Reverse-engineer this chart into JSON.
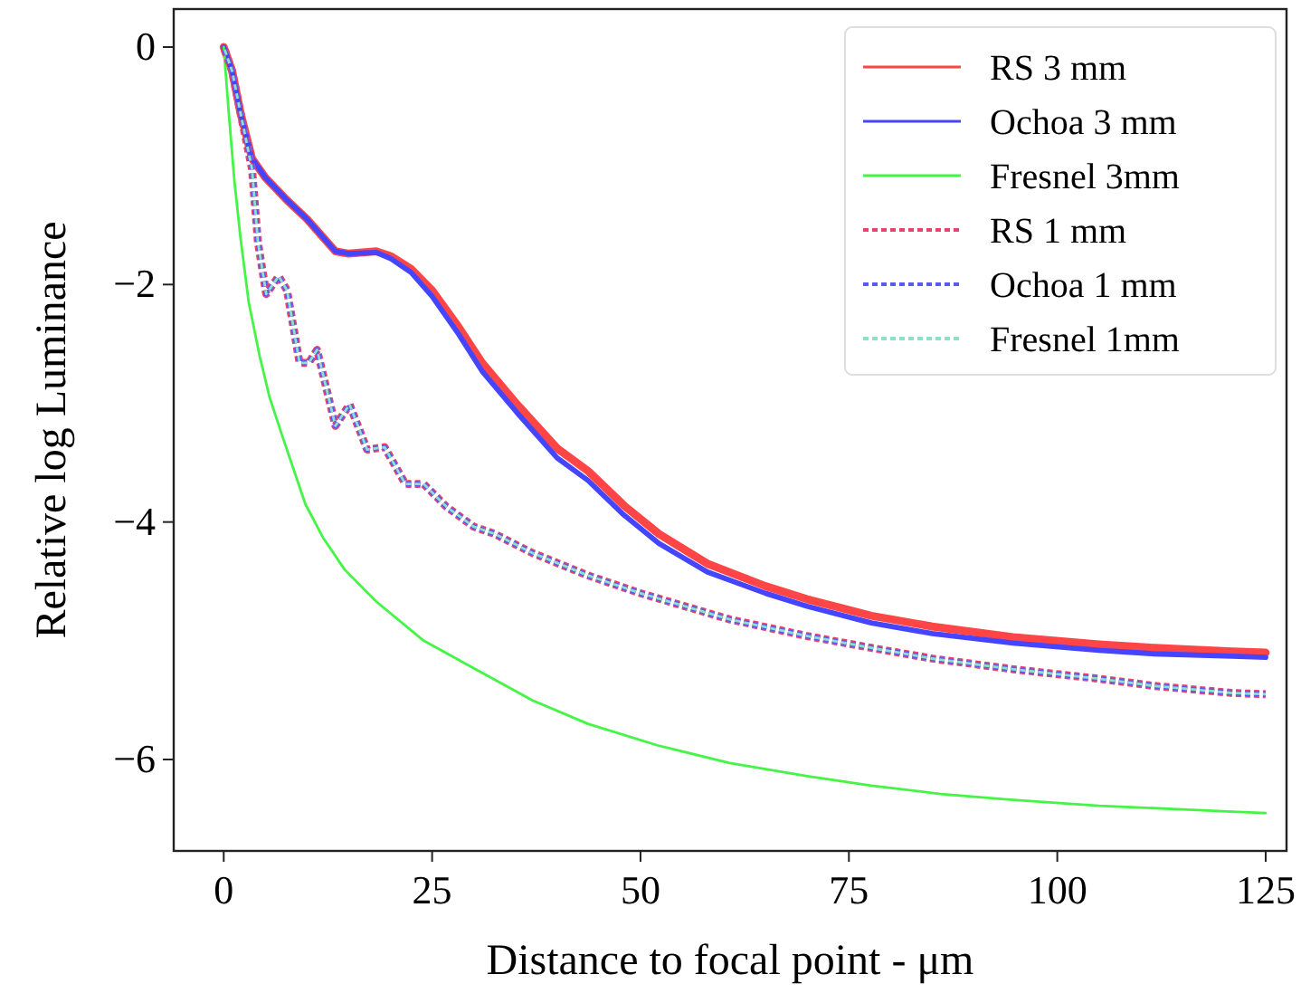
{
  "chart_data": {
    "type": "line",
    "xlabel": "Distance to focal point - μm",
    "ylabel": "Relative log Luminance",
    "xlim": [
      -6,
      127.5
    ],
    "ylim": [
      -6.77,
      0.32
    ],
    "xticks": [
      0,
      25,
      50,
      75,
      100,
      125
    ],
    "yticks": [
      0,
      -2,
      -4,
      -6
    ],
    "grid": false,
    "legend": "top right",
    "series": [
      {
        "name": "RS 3 mm",
        "color": "#ff4545",
        "line_style": "solid",
        "x": [
          0,
          1,
          2,
          3.4,
          5,
          7.6,
          10,
          13.4,
          15,
          18.3,
          20,
          22.5,
          25,
          28.2,
          31,
          35.2,
          40,
          43.7,
          48,
          52.2,
          58,
          65,
          70,
          77.7,
          85,
          94.7,
          105,
          111.6,
          121,
          125
        ],
        "values": [
          0,
          -0.2,
          -0.55,
          -0.94,
          -1.1,
          -1.29,
          -1.45,
          -1.72,
          -1.74,
          -1.72,
          -1.76,
          -1.87,
          -2.05,
          -2.36,
          -2.66,
          -3.01,
          -3.38,
          -3.57,
          -3.86,
          -4.1,
          -4.35,
          -4.54,
          -4.65,
          -4.79,
          -4.88,
          -4.97,
          -5.03,
          -5.06,
          -5.09,
          -5.1
        ]
      },
      {
        "name": "Ochoa 3 mm",
        "color": "#4545ff",
        "line_style": "solid",
        "x": [
          0,
          1,
          2,
          3.4,
          5,
          7.6,
          10,
          13.4,
          15,
          18.3,
          20,
          22.5,
          25,
          28.2,
          31,
          35.2,
          40,
          43.7,
          48,
          52.2,
          58,
          65,
          70,
          77.7,
          85,
          94.7,
          105,
          111.6,
          121,
          125
        ],
        "values": [
          0,
          -0.2,
          -0.55,
          -0.94,
          -1.1,
          -1.29,
          -1.45,
          -1.72,
          -1.74,
          -1.73,
          -1.78,
          -1.9,
          -2.1,
          -2.42,
          -2.73,
          -3.08,
          -3.46,
          -3.65,
          -3.94,
          -4.18,
          -4.42,
          -4.6,
          -4.71,
          -4.85,
          -4.94,
          -5.02,
          -5.08,
          -5.11,
          -5.13,
          -5.14
        ]
      },
      {
        "name": "Fresnel 3mm",
        "color": "#45f545",
        "line_style": "solid",
        "x": [
          0,
          0.6,
          1.3,
          2,
          3,
          4.3,
          5.5,
          7,
          9.8,
          11.9,
          14.5,
          18.3,
          24,
          31,
          37,
          43.7,
          52,
          60.7,
          70,
          77.7,
          86,
          94.7,
          105,
          115,
          121,
          125
        ],
        "values": [
          0,
          -0.55,
          -1.14,
          -1.6,
          -2.15,
          -2.6,
          -2.95,
          -3.27,
          -3.85,
          -4.13,
          -4.4,
          -4.67,
          -5.0,
          -5.27,
          -5.5,
          -5.7,
          -5.88,
          -6.03,
          -6.14,
          -6.22,
          -6.29,
          -6.34,
          -6.39,
          -6.42,
          -6.44,
          -6.45
        ]
      },
      {
        "name": "RS 1 mm",
        "color": "#e8426e",
        "line_style": "dotted",
        "x": [
          0,
          1,
          2,
          3.4,
          4.1,
          5.1,
          6.6,
          7.6,
          9.1,
          10.2,
          11.2,
          13.4,
          15.1,
          17.2,
          19.3,
          21.8,
          24,
          26.7,
          30,
          32.5,
          37,
          43.7,
          50,
          60.7,
          70,
          77.7,
          85,
          94.7,
          105,
          111.6,
          121,
          125
        ],
        "values": [
          0,
          -0.2,
          -0.55,
          -1.03,
          -1.64,
          -2.08,
          -1.93,
          -2.05,
          -2.66,
          -2.66,
          -2.55,
          -3.19,
          -3.01,
          -3.39,
          -3.37,
          -3.68,
          -3.68,
          -3.87,
          -4.04,
          -4.1,
          -4.26,
          -4.45,
          -4.6,
          -4.82,
          -4.96,
          -5.06,
          -5.15,
          -5.24,
          -5.32,
          -5.38,
          -5.44,
          -5.45
        ]
      },
      {
        "name": "Ochoa 1 mm",
        "color": "#5a5af0",
        "line_style": "dotted",
        "x": [
          0,
          1,
          2,
          3.4,
          4.1,
          5.1,
          6.6,
          7.6,
          9.1,
          10.2,
          11.2,
          13.4,
          15.1,
          17.2,
          19.3,
          21.8,
          24,
          26.7,
          30,
          32.5,
          37,
          43.7,
          50,
          60.7,
          70,
          77.7,
          85,
          94.7,
          105,
          111.6,
          121,
          125
        ],
        "values": [
          0,
          -0.2,
          -0.55,
          -1.03,
          -1.64,
          -2.08,
          -1.93,
          -2.05,
          -2.66,
          -2.66,
          -2.55,
          -3.19,
          -3.01,
          -3.39,
          -3.37,
          -3.68,
          -3.68,
          -3.87,
          -4.04,
          -4.1,
          -4.26,
          -4.45,
          -4.6,
          -4.82,
          -4.96,
          -5.06,
          -5.15,
          -5.24,
          -5.32,
          -5.38,
          -5.44,
          -5.45
        ]
      },
      {
        "name": "Fresnel 1mm",
        "color": "#8ee0c8",
        "line_style": "dotted",
        "x": [
          0,
          1,
          2,
          3.4,
          4.1,
          5.1,
          6.6,
          7.6,
          9.1,
          10.2,
          11.2,
          13.4,
          15.1,
          17.2,
          19.3,
          21.8,
          24,
          26.7,
          30,
          32.5,
          37,
          43.7,
          50,
          60.7,
          70,
          77.7,
          85,
          94.7,
          105,
          111.6,
          121,
          125
        ],
        "values": [
          0,
          -0.2,
          -0.55,
          -1.03,
          -1.64,
          -2.08,
          -1.93,
          -2.05,
          -2.66,
          -2.66,
          -2.55,
          -3.19,
          -3.01,
          -3.39,
          -3.37,
          -3.68,
          -3.68,
          -3.87,
          -4.04,
          -4.1,
          -4.26,
          -4.45,
          -4.6,
          -4.82,
          -4.96,
          -5.06,
          -5.15,
          -5.24,
          -5.32,
          -5.38,
          -5.44,
          -5.45
        ]
      }
    ]
  }
}
